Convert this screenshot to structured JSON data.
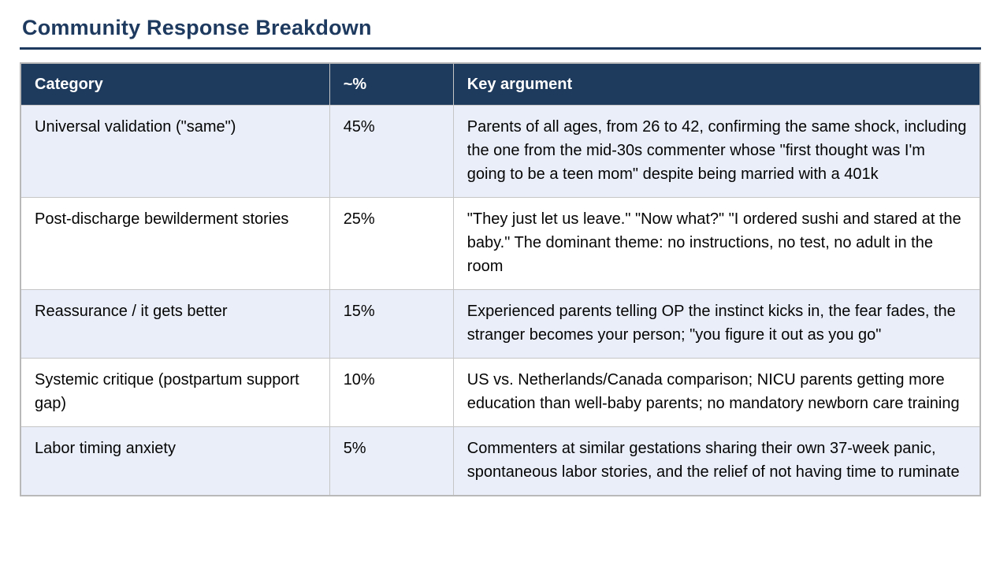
{
  "page": {
    "title": "Community Response Breakdown"
  },
  "colors": {
    "accent_navy": "#1e3a5c",
    "title_navy": "#1e3a5f",
    "row_alt_bg": "#e9eef8",
    "table_border": "#c6c6c6"
  },
  "table": {
    "columns": [
      "Category",
      "~%",
      "Key argument"
    ],
    "rows": [
      {
        "category": "Universal validation (\"same\")",
        "percent": "45%",
        "key_argument": "Parents of all ages, from 26 to 42, confirming the same shock, including the one from the mid-30s commenter whose \"first thought was I'm going to be a teen mom\" despite being married with a 401k"
      },
      {
        "category": "Post-discharge bewilderment stories",
        "percent": "25%",
        "key_argument": "\"They just let us leave.\" \"Now what?\" \"I ordered sushi and stared at the baby.\" The dominant theme: no instructions, no test, no adult in the room"
      },
      {
        "category": "Reassurance / it gets better",
        "percent": "15%",
        "key_argument": "Experienced parents telling OP the instinct kicks in, the fear fades, the stranger becomes your person; \"you figure it out as you go\""
      },
      {
        "category": "Systemic critique (postpartum support gap)",
        "percent": "10%",
        "key_argument": "US vs. Netherlands/Canada comparison; NICU parents getting more education than well-baby parents; no mandatory newborn care training"
      },
      {
        "category": "Labor timing anxiety",
        "percent": "5%",
        "key_argument": "Commenters at similar gestations sharing their own 37-week panic, spontaneous labor stories, and the relief of not having time to ruminate"
      }
    ]
  }
}
